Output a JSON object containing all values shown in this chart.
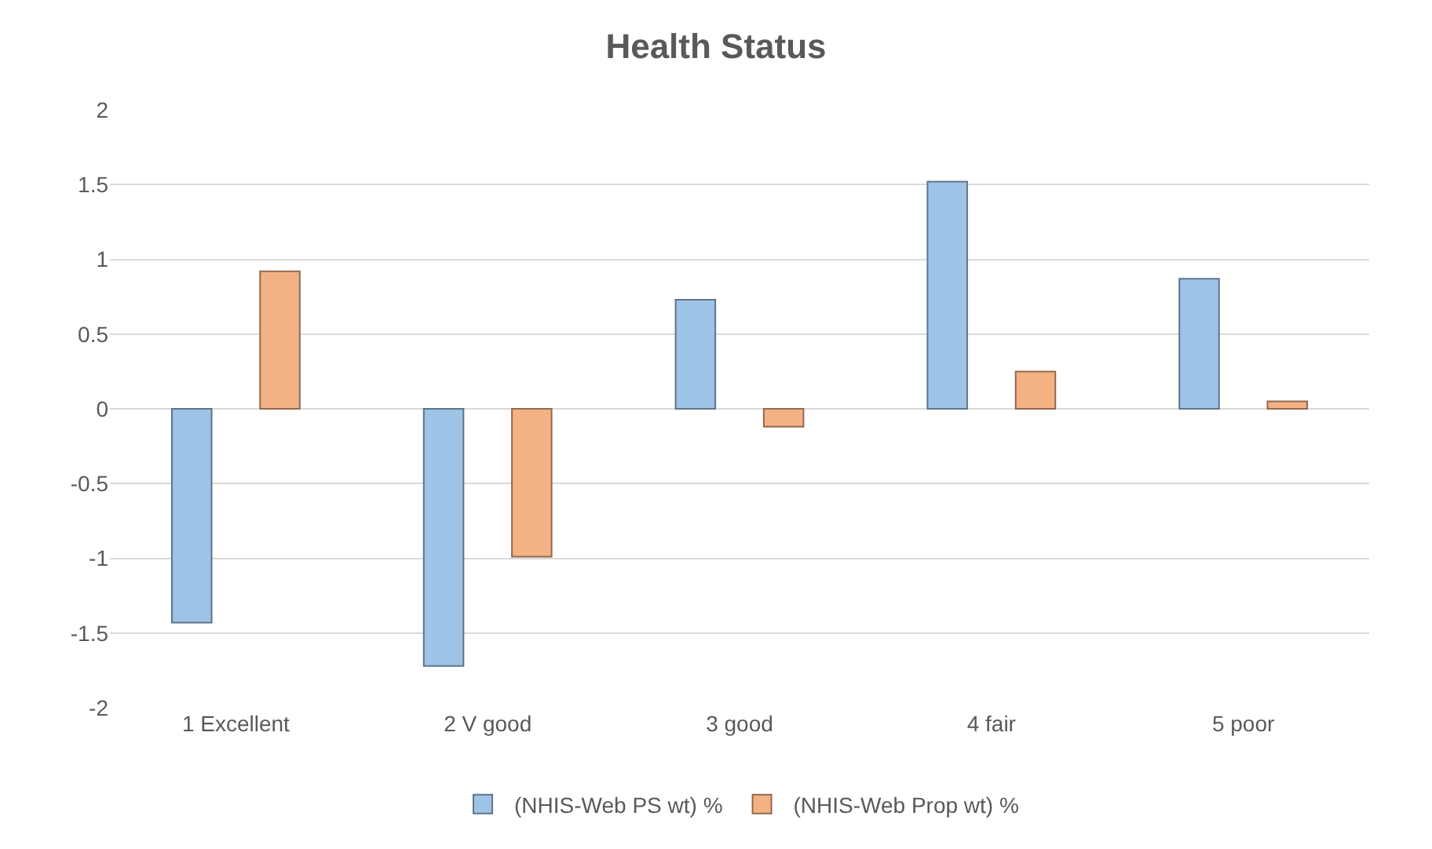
{
  "chart_data": {
    "type": "bar",
    "title": "Health Status",
    "categories": [
      "1 Excellent",
      "2 V good",
      "3 good",
      "4 fair",
      "5 poor"
    ],
    "series": [
      {
        "name": "(NHIS-Web PS wt) %",
        "color": "#9dc3e6",
        "values": [
          -1.43,
          -1.72,
          0.73,
          1.52,
          0.87
        ]
      },
      {
        "name": "(NHIS-Web Prop wt) %",
        "color": "#f4b183",
        "values": [
          0.92,
          -0.99,
          -0.12,
          0.25,
          0.05
        ]
      }
    ],
    "ylim": [
      -2,
      2
    ],
    "yticks": [
      2,
      1.5,
      1,
      0.5,
      0,
      -0.5,
      -1,
      -1.5,
      -2
    ],
    "grid": "y",
    "legend": "bottom"
  }
}
